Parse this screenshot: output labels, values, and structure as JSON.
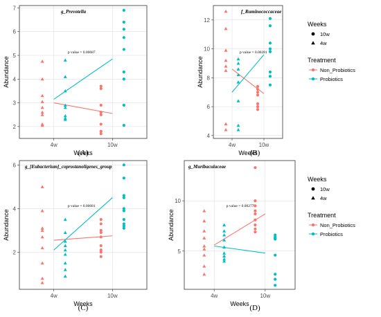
{
  "colors": {
    "non_probiotics": "#F8766D",
    "probiotics": "#00BFC4",
    "frame": "#333333",
    "grid": "#d9d9d9"
  },
  "legend": {
    "weeks_title": "Weeks",
    "weeks_items": [
      {
        "label": "10w",
        "shape": "circle"
      },
      {
        "label": "4w",
        "shape": "triangle"
      }
    ],
    "treatment_title": "Treatment",
    "treatment_items": [
      {
        "label": "Non_Probiotics",
        "color": "#F8766D"
      },
      {
        "label": "Probiotics",
        "color": "#00BFC4"
      }
    ]
  },
  "chart_data": [
    {
      "type": "scatter",
      "panel_label": "(A)",
      "title": "g_Prevotella",
      "xlabel": "Weeks",
      "ylabel": "Abundance",
      "categories": [
        "4w",
        "10w"
      ],
      "ylim": [
        1.5,
        7.1
      ],
      "yticks": [
        2,
        3,
        4,
        5,
        6,
        7
      ],
      "annotation": "p value = 0.00687",
      "series": [
        {
          "name": "Non_Probiotics",
          "x": [
            "4w",
            "4w",
            "4w",
            "4w",
            "4w",
            "4w",
            "4w",
            "4w",
            "4w",
            "10w",
            "10w",
            "10w",
            "10w",
            "10w",
            "10w",
            "10w",
            "10w"
          ],
          "y": [
            4.75,
            4.0,
            3.3,
            3.05,
            2.8,
            2.6,
            2.5,
            2.1,
            2.05,
            3.7,
            3.6,
            2.9,
            2.6,
            2.5,
            2.1,
            1.8,
            1.7
          ],
          "trend": [
            3.0,
            2.55
          ]
        },
        {
          "name": "Probiotics",
          "x": [
            "4w",
            "4w",
            "4w",
            "4w",
            "4w",
            "4w",
            "4w",
            "4w",
            "10w",
            "10w",
            "10w",
            "10w",
            "10w",
            "10w",
            "10w",
            "10w",
            "10w"
          ],
          "y": [
            4.8,
            4.1,
            3.5,
            2.9,
            2.8,
            2.45,
            2.35,
            2.3,
            6.9,
            6.4,
            6.1,
            5.75,
            5.25,
            4.3,
            4.0,
            2.9,
            2.05
          ],
          "trend": [
            3.15,
            4.85
          ]
        }
      ]
    },
    {
      "type": "scatter",
      "panel_label": "(B)",
      "title": "f_Ruminococcaceae",
      "xlabel": "Weeks",
      "ylabel": "Abundance",
      "categories": [
        "4w",
        "10w"
      ],
      "ylim": [
        3.8,
        13.0
      ],
      "yticks": [
        4,
        6,
        8,
        10,
        12
      ],
      "annotation": "p value = 0.00281",
      "series": [
        {
          "name": "Non_Probiotics",
          "x": [
            "4w",
            "4w",
            "4w",
            "4w",
            "4w",
            "4w",
            "4w",
            "4w",
            "10w",
            "10w",
            "10w",
            "10w",
            "10w",
            "10w",
            "10w"
          ],
          "y": [
            12.6,
            11.4,
            9.9,
            9.2,
            8.8,
            8.5,
            4.8,
            4.4,
            7.4,
            7.2,
            7.0,
            6.8,
            6.2,
            6.0,
            5.8
          ],
          "trend": [
            8.6,
            6.9
          ]
        },
        {
          "name": "Probiotics",
          "x": [
            "4w",
            "4w",
            "4w",
            "4w",
            "4w",
            "4w",
            "4w",
            "4w",
            "10w",
            "10w",
            "10w",
            "10w",
            "10w",
            "10w",
            "10w",
            "10w"
          ],
          "y": [
            9.3,
            9.0,
            8.6,
            8.2,
            7.7,
            6.4,
            4.7,
            4.4,
            12.1,
            11.6,
            10.4,
            10.0,
            9.8,
            8.4,
            8.1,
            7.5
          ],
          "trend": [
            7.0,
            9.6
          ]
        }
      ]
    },
    {
      "type": "scatter",
      "panel_label": "(C)",
      "title": "g_[Eubacterium]_coprostanoligenes_group",
      "xlabel": "Weeks",
      "ylabel": "Abundance",
      "categories": [
        "4w",
        "10w"
      ],
      "ylim": [
        0.3,
        6.2
      ],
      "yticks": [
        2,
        4,
        6
      ],
      "annotation": "p value = 0.00681",
      "series": [
        {
          "name": "Non_Probiotics",
          "x": [
            "4w",
            "4w",
            "4w",
            "4w",
            "4w",
            "4w",
            "4w",
            "4w",
            "4w",
            "10w",
            "10w",
            "10w",
            "10w",
            "10w",
            "10w",
            "10w",
            "10w",
            "10w"
          ],
          "y": [
            5.0,
            3.9,
            3.1,
            3.0,
            2.7,
            2.2,
            1.5,
            0.8,
            0.6,
            3.5,
            3.3,
            3.0,
            2.9,
            2.7,
            2.3,
            2.1,
            2.0,
            1.8
          ],
          "trend": [
            2.55,
            2.75
          ]
        },
        {
          "name": "Probiotics",
          "x": [
            "4w",
            "4w",
            "4w",
            "4w",
            "4w",
            "4w",
            "4w",
            "4w",
            "4w",
            "10w",
            "10w",
            "10w",
            "10w",
            "10w",
            "10w",
            "10w",
            "10w",
            "10w",
            "10w"
          ],
          "y": [
            3.5,
            2.9,
            2.5,
            2.3,
            2.1,
            1.9,
            1.5,
            1.2,
            0.9,
            6.0,
            5.4,
            4.6,
            4.5,
            4.0,
            3.9,
            3.5,
            3.3,
            3.2,
            3.1
          ],
          "trend": [
            2.1,
            4.5
          ]
        }
      ]
    },
    {
      "type": "scatter",
      "panel_label": "(D)",
      "title": "g_Muribaculaceae",
      "xlabel": "Weeks",
      "ylabel": "Abundance",
      "categories": [
        "4w",
        "10w"
      ],
      "ylim": [
        1.2,
        14.0
      ],
      "yticks": [
        5,
        10
      ],
      "annotation": "p value = 0.002779",
      "series": [
        {
          "name": "Non_Probiotics",
          "x": [
            "4w",
            "4w",
            "4w",
            "4w",
            "4w",
            "4w",
            "4w",
            "4w",
            "4w",
            "10w",
            "10w",
            "10w",
            "10w",
            "10w",
            "10w",
            "10w",
            "10w",
            "10w"
          ],
          "y": [
            9.0,
            8.0,
            7.0,
            6.3,
            5.5,
            5.2,
            4.6,
            3.5,
            2.7,
            13.3,
            10.0,
            9.5,
            9.0,
            8.7,
            8.1,
            7.6,
            7.2,
            6.9
          ],
          "trend": [
            5.6,
            8.7
          ]
        },
        {
          "name": "Probiotics",
          "x": [
            "4w",
            "4w",
            "4w",
            "4w",
            "4w",
            "4w",
            "4w",
            "4w",
            "4w",
            "10w",
            "10w",
            "10w",
            "10w",
            "10w",
            "10w",
            "10w",
            "10w",
            "10w"
          ],
          "y": [
            7.6,
            7.0,
            6.6,
            6.1,
            5.4,
            4.8,
            4.5,
            4.2,
            4.0,
            6.6,
            6.4,
            6.3,
            6.2,
            6.2,
            4.6,
            2.7,
            2.2,
            1.6
          ],
          "trend": [
            5.5,
            4.8
          ]
        }
      ]
    }
  ]
}
